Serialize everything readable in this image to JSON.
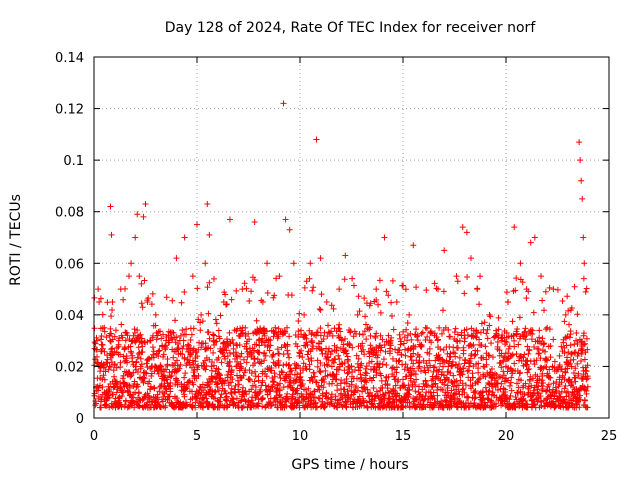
{
  "chart_data": {
    "type": "scatter",
    "title": "Day 128 of 2024, Rate Of TEC Index for receiver norf",
    "xlabel": "GPS time / hours",
    "ylabel": "ROTI / TECUs",
    "xlim": [
      0,
      25
    ],
    "ylim": [
      0,
      0.14
    ],
    "xticks": [
      0,
      5,
      10,
      15,
      20,
      25
    ],
    "xtick_labels": [
      "0",
      "5",
      "10",
      "15",
      "20",
      "25"
    ],
    "yticks": [
      0,
      0.02,
      0.04,
      0.06,
      0.08,
      0.1,
      0.12,
      0.14
    ],
    "ytick_labels": [
      "0",
      "0.02",
      "0.04",
      "0.06",
      "0.08",
      "0.1",
      "0.12",
      "0.14"
    ],
    "grid": true,
    "marker": "+",
    "color": "#ff0000",
    "series": [
      {
        "name": "ROTI",
        "points": [
          [
            0.1,
            0.012
          ],
          [
            0.15,
            0.03
          ],
          [
            0.2,
            0.05
          ],
          [
            0.25,
            0.045
          ],
          [
            0.3,
            0.02
          ],
          [
            0.4,
            0.015
          ],
          [
            0.5,
            0.035
          ],
          [
            0.6,
            0.01
          ],
          [
            0.75,
            0.02
          ],
          [
            0.8,
            0.082
          ],
          [
            0.85,
            0.071
          ],
          [
            0.9,
            0.045
          ],
          [
            1.0,
            0.012
          ],
          [
            1.2,
            0.03
          ],
          [
            1.3,
            0.05
          ],
          [
            1.5,
            0.018
          ],
          [
            1.7,
            0.055
          ],
          [
            1.8,
            0.06
          ],
          [
            2.0,
            0.07
          ],
          [
            2.1,
            0.079
          ],
          [
            2.2,
            0.055
          ],
          [
            2.3,
            0.052
          ],
          [
            2.4,
            0.078
          ],
          [
            2.5,
            0.083
          ],
          [
            2.6,
            0.045
          ],
          [
            2.8,
            0.02
          ],
          [
            3.0,
            0.04
          ],
          [
            3.2,
            0.012
          ],
          [
            3.5,
            0.03
          ],
          [
            3.8,
            0.018
          ],
          [
            4.0,
            0.062
          ],
          [
            4.2,
            0.025
          ],
          [
            4.4,
            0.07
          ],
          [
            4.6,
            0.014
          ],
          [
            4.8,
            0.055
          ],
          [
            5.0,
            0.075
          ],
          [
            5.2,
            0.04
          ],
          [
            5.4,
            0.06
          ],
          [
            5.5,
            0.083
          ],
          [
            5.6,
            0.071
          ],
          [
            5.8,
            0.03
          ],
          [
            6.0,
            0.012
          ],
          [
            6.3,
            0.045
          ],
          [
            6.6,
            0.077
          ],
          [
            6.9,
            0.02
          ],
          [
            7.2,
            0.05
          ],
          [
            7.5,
            0.015
          ],
          [
            7.8,
            0.076
          ],
          [
            8.0,
            0.03
          ],
          [
            8.2,
            0.045
          ],
          [
            8.4,
            0.06
          ],
          [
            8.6,
            0.012
          ],
          [
            8.8,
            0.035
          ],
          [
            9.0,
            0.055
          ],
          [
            9.2,
            0.122
          ],
          [
            9.3,
            0.077
          ],
          [
            9.5,
            0.073
          ],
          [
            9.7,
            0.06
          ],
          [
            10.0,
            0.025
          ],
          [
            10.2,
            0.04
          ],
          [
            10.5,
            0.06
          ],
          [
            10.8,
            0.108
          ],
          [
            11.0,
            0.062
          ],
          [
            11.3,
            0.045
          ],
          [
            11.6,
            0.015
          ],
          [
            11.9,
            0.05
          ],
          [
            12.2,
            0.063
          ],
          [
            12.5,
            0.02
          ],
          [
            12.8,
            0.04
          ],
          [
            13.1,
            0.012
          ],
          [
            13.4,
            0.035
          ],
          [
            13.7,
            0.05
          ],
          [
            13.9,
            0.004
          ],
          [
            14.1,
            0.07
          ],
          [
            14.4,
            0.03
          ],
          [
            14.7,
            0.045
          ],
          [
            15.0,
            0.015
          ],
          [
            15.3,
            0.04
          ],
          [
            15.5,
            0.067
          ],
          [
            15.8,
            0.02
          ],
          [
            16.1,
            0.035
          ],
          [
            16.4,
            0.012
          ],
          [
            16.7,
            0.05
          ],
          [
            17.0,
            0.065
          ],
          [
            17.3,
            0.025
          ],
          [
            17.6,
            0.055
          ],
          [
            17.9,
            0.074
          ],
          [
            18.1,
            0.072
          ],
          [
            18.3,
            0.062
          ],
          [
            18.6,
            0.05
          ],
          [
            18.9,
            0.02
          ],
          [
            19.2,
            0.04
          ],
          [
            19.5,
            0.012
          ],
          [
            19.8,
            0.03
          ],
          [
            20.1,
            0.045
          ],
          [
            20.4,
            0.074
          ],
          [
            20.7,
            0.06
          ],
          [
            21.0,
            0.05
          ],
          [
            21.2,
            0.068
          ],
          [
            21.4,
            0.07
          ],
          [
            21.7,
            0.055
          ],
          [
            22.0,
            0.035
          ],
          [
            22.3,
            0.05
          ],
          [
            22.6,
            0.015
          ],
          [
            22.9,
            0.04
          ],
          [
            23.2,
            0.025
          ],
          [
            23.4,
            0.03
          ],
          [
            23.55,
            0.107
          ],
          [
            23.6,
            0.1
          ],
          [
            23.65,
            0.092
          ],
          [
            23.7,
            0.085
          ],
          [
            23.75,
            0.07
          ],
          [
            23.8,
            0.06
          ],
          [
            23.9,
            0.015
          ]
        ]
      }
    ],
    "band": {
      "description": "dense low-level cloud of points",
      "x_range": [
        0,
        24
      ],
      "y_low": 0.004,
      "y_high": 0.035
    }
  }
}
